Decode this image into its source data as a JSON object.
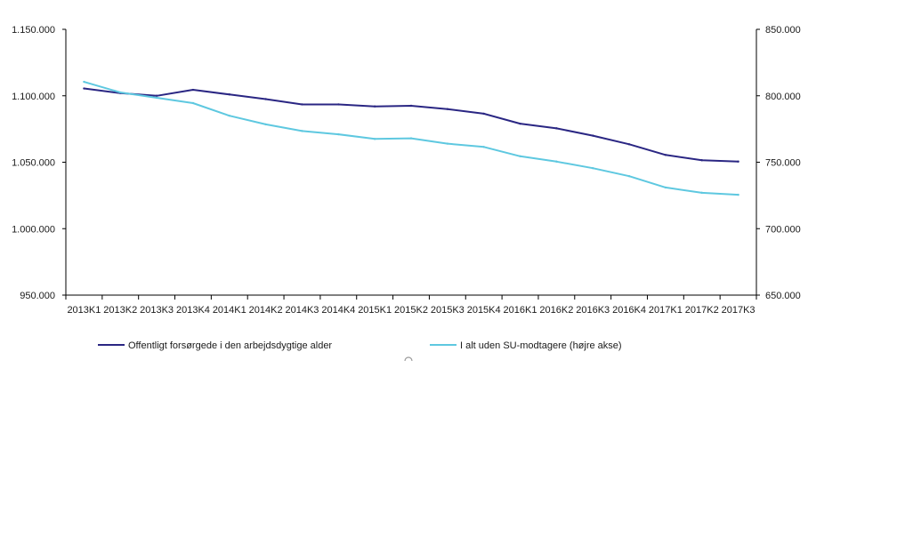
{
  "chart_data": {
    "type": "line",
    "categories": [
      "2013K1",
      "2013K2",
      "2013K3",
      "2013K4",
      "2014K1",
      "2014K2",
      "2014K3",
      "2014K4",
      "2015K1",
      "2015K2",
      "2015K3",
      "2015K4",
      "2016K1",
      "2016K2",
      "2016K3",
      "2016K4",
      "2017K1",
      "2017K2",
      "2017K3"
    ],
    "y_left": {
      "ylim": [
        950000,
        1150000
      ],
      "ticks": [
        950000,
        1000000,
        1050000,
        1100000,
        1150000
      ],
      "tick_labels": [
        "950.000",
        "1.000.000",
        "1.050.000",
        "1.100.000",
        "1.150.000"
      ]
    },
    "y_right": {
      "ylim": [
        650000,
        850000
      ],
      "ticks": [
        650000,
        700000,
        750000,
        800000,
        850000
      ],
      "tick_labels": [
        "650.000",
        "700.000",
        "750.000",
        "800.000",
        "850.000"
      ]
    },
    "series": [
      {
        "name": "Offentligt forsørgede i den arbejdsdygtige alder",
        "axis": "left",
        "color": "#2a2683",
        "values": [
          1105500,
          1102000,
          1100000,
          1104500,
          1101000,
          1097500,
          1093500,
          1093500,
          1092000,
          1092500,
          1090000,
          1086500,
          1079000,
          1075500,
          1070000,
          1063500,
          1055500,
          1051500,
          1050500
        ]
      },
      {
        "name": "I alt uden SU-modtagere (højre akse)",
        "axis": "right",
        "color": "#5ec8e0",
        "values": [
          810500,
          802500,
          798500,
          794500,
          785000,
          778500,
          773500,
          771000,
          767500,
          768000,
          764000,
          761500,
          754500,
          750500,
          745500,
          739500,
          731000,
          727000,
          725500
        ]
      }
    ],
    "title": "",
    "xlabel": "",
    "ylabel": "",
    "grid": false,
    "legend_position": "bottom"
  }
}
